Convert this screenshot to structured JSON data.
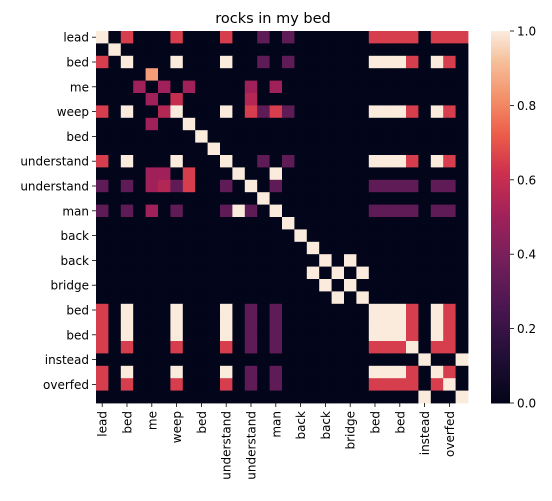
{
  "chart_data": {
    "type": "heatmap",
    "title": "rocks in my bed",
    "xlabel": "",
    "ylabel": "",
    "rows": [
      "lead",
      "",
      "bed",
      "",
      "me",
      "",
      "weep",
      "",
      "bed",
      "",
      "understand",
      "",
      "understand",
      "",
      "man",
      "",
      "back",
      "",
      "back",
      "",
      "bridge",
      "",
      "bed",
      "",
      "bed",
      "",
      "instead",
      "",
      "overfed",
      ""
    ],
    "cols": [
      "lead",
      "",
      "bed",
      "",
      "me",
      "",
      "weep",
      "",
      "bed",
      "",
      "understand",
      "",
      "understand",
      "",
      "man",
      "",
      "back",
      "",
      "back",
      "",
      "bridge",
      "",
      "bed",
      "",
      "bed",
      "",
      "instead",
      "",
      "overfed",
      ""
    ],
    "tick_rows": [
      "lead",
      "bed",
      "me",
      "weep",
      "bed",
      "understand",
      "understand",
      "man",
      "back",
      "back",
      "bridge",
      "bed",
      "bed",
      "instead",
      "overfed"
    ],
    "tick_cols": [
      "lead",
      "bed",
      "me",
      "weep",
      "bed",
      "understand",
      "understand",
      "man",
      "back",
      "back",
      "bridge",
      "bed",
      "bed",
      "instead",
      "overfed"
    ],
    "values": [
      [
        1,
        0,
        0.65,
        0,
        0,
        0,
        0.65,
        0,
        0,
        0,
        0.65,
        0,
        0,
        0.32,
        0,
        0.32,
        0,
        0,
        0,
        0,
        0,
        0,
        0.65,
        0.65,
        0.65,
        0.65,
        0,
        0.65,
        0.65,
        0.65
      ],
      [
        0,
        1,
        0,
        0,
        0,
        0,
        0,
        0,
        0,
        0,
        0,
        0,
        0,
        0,
        0,
        0,
        0,
        0,
        0,
        0,
        0,
        0,
        0,
        0,
        0,
        0,
        0,
        0,
        0,
        0
      ],
      [
        0.65,
        0,
        1,
        0,
        0,
        0,
        1,
        0,
        0,
        0,
        1,
        0,
        0,
        0.32,
        0,
        0.32,
        0,
        0,
        0,
        0,
        0,
        0,
        1,
        1,
        1,
        0.65,
        0,
        1,
        0.65,
        0
      ],
      [
        0,
        0,
        0,
        0,
        0.85,
        0,
        0,
        0,
        0,
        0,
        0,
        0,
        0,
        0,
        0,
        0,
        0,
        0,
        0,
        0,
        0,
        0,
        0,
        0,
        0,
        0,
        0,
        0,
        0,
        0
      ],
      [
        0,
        0,
        0,
        0.5,
        0,
        0.5,
        0,
        0.5,
        0,
        0,
        0,
        0,
        0.5,
        0,
        0.5,
        0,
        0,
        0,
        0,
        0,
        0,
        0,
        0,
        0,
        0,
        0,
        0,
        0,
        0,
        0
      ],
      [
        0,
        0,
        0,
        0,
        0.5,
        0,
        0.6,
        0,
        0,
        0,
        0,
        0,
        0.55,
        0,
        0,
        0,
        0,
        0,
        0,
        0,
        0,
        0,
        0,
        0,
        0,
        0,
        0,
        0,
        0,
        0
      ],
      [
        0.65,
        0,
        1,
        0,
        0,
        0.55,
        1,
        0,
        0,
        0,
        1,
        0,
        0.65,
        0.32,
        0.65,
        0.32,
        0,
        0,
        0,
        0,
        0,
        0,
        1,
        1,
        1,
        0.65,
        0,
        1,
        0.65,
        0
      ],
      [
        0,
        0,
        0,
        0,
        0.5,
        0,
        0,
        1,
        0,
        0,
        0,
        0,
        0,
        0,
        0,
        0,
        0,
        0,
        0,
        0,
        0,
        0,
        0,
        0,
        0,
        0,
        0,
        0,
        0,
        0
      ],
      [
        0,
        0,
        0,
        0,
        0,
        0,
        0,
        0,
        1,
        0,
        0,
        0,
        0,
        0,
        0,
        0,
        0,
        0,
        0,
        0,
        0,
        0,
        0,
        0,
        0,
        0,
        0,
        0,
        0,
        0
      ],
      [
        0,
        0,
        0,
        0,
        0,
        0,
        0,
        0,
        0,
        1,
        0,
        0,
        0,
        0,
        0,
        0,
        0,
        0,
        0,
        0,
        0,
        0,
        0,
        0,
        0,
        0,
        0,
        0,
        0,
        0
      ],
      [
        0.65,
        0,
        1,
        0,
        0,
        0,
        1,
        0,
        0,
        0,
        1,
        0,
        0,
        0.32,
        0,
        0.32,
        0,
        0,
        0,
        0,
        0,
        0,
        1,
        1,
        1,
        0.65,
        0,
        1,
        0.65,
        0
      ],
      [
        0,
        0,
        0,
        0,
        0.5,
        0.5,
        0,
        0.65,
        0,
        0,
        0,
        1,
        0,
        0,
        1,
        0,
        0,
        0,
        0,
        0,
        0,
        0,
        0,
        0,
        0,
        0,
        0,
        0,
        0,
        0
      ],
      [
        0.32,
        0,
        0.32,
        0,
        0.5,
        0.55,
        0.32,
        0.65,
        0,
        0,
        0.32,
        0,
        1,
        0,
        0.32,
        0,
        0,
        0,
        0,
        0,
        0,
        0,
        0.32,
        0.32,
        0.32,
        0.32,
        0,
        0.32,
        0.32,
        0
      ],
      [
        0,
        0,
        0,
        0,
        0,
        0,
        0,
        0,
        0,
        0,
        0,
        0,
        0,
        1,
        0,
        0,
        0,
        0,
        0,
        0,
        0,
        0,
        0,
        0,
        0,
        0,
        0,
        0,
        0,
        0
      ],
      [
        0.32,
        0,
        0.32,
        0,
        0.5,
        0,
        0.32,
        0,
        0,
        0,
        0.32,
        1,
        0.32,
        0,
        1,
        0,
        0,
        0,
        0,
        0,
        0,
        0,
        0.32,
        0.32,
        0.32,
        0.32,
        0,
        0.32,
        0.32,
        0
      ],
      [
        0,
        0,
        0,
        0,
        0,
        0,
        0,
        0,
        0,
        0,
        0,
        0,
        0,
        0,
        0,
        1,
        0,
        0,
        0,
        0,
        0,
        0,
        0,
        0,
        0,
        0,
        0,
        0,
        0,
        0
      ],
      [
        0,
        0,
        0,
        0,
        0,
        0,
        0,
        0,
        0,
        0,
        0,
        0,
        0,
        0,
        0,
        0,
        1,
        0,
        0,
        0,
        0,
        0,
        0,
        0,
        0,
        0,
        0,
        0,
        0,
        0
      ],
      [
        0,
        0,
        0,
        0,
        0,
        0,
        0,
        0,
        0,
        0,
        0,
        0,
        0,
        0,
        0,
        0,
        0,
        1,
        0,
        0,
        0,
        0,
        0,
        0,
        0,
        0,
        0,
        0,
        0,
        0
      ],
      [
        0,
        0,
        0,
        0,
        0,
        0,
        0,
        0,
        0,
        0,
        0,
        0,
        0,
        0,
        0,
        0,
        0,
        0,
        1,
        0,
        1,
        0,
        0,
        0,
        0,
        0,
        0,
        0,
        0,
        0
      ],
      [
        0,
        0,
        0,
        0,
        0,
        0,
        0,
        0,
        0,
        0,
        0,
        0,
        0,
        0,
        0,
        0,
        0,
        1,
        0,
        1,
        0,
        1,
        0,
        0,
        0,
        0,
        0,
        0,
        0,
        0
      ],
      [
        0,
        0,
        0,
        0,
        0,
        0,
        0,
        0,
        0,
        0,
        0,
        0,
        0,
        0,
        0,
        0,
        0,
        0,
        1,
        0,
        1,
        0,
        0,
        0,
        0,
        0,
        0,
        0,
        0,
        0
      ],
      [
        0,
        0,
        0,
        0,
        0,
        0,
        0,
        0,
        0,
        0,
        0,
        0,
        0,
        0,
        0,
        0,
        0,
        0,
        0,
        1,
        0,
        1,
        0,
        0,
        0,
        0,
        0,
        0,
        0,
        0
      ],
      [
        0.65,
        0,
        1,
        0,
        0,
        0,
        1,
        0,
        0,
        0,
        1,
        0,
        0.32,
        0,
        0.32,
        0,
        0,
        0,
        0,
        0,
        0,
        0,
        1,
        1,
        1,
        0.65,
        0,
        1,
        0.65,
        0
      ],
      [
        0.65,
        0,
        1,
        0,
        0,
        0,
        1,
        0,
        0,
        0,
        1,
        0,
        0.32,
        0,
        0.32,
        0,
        0,
        0,
        0,
        0,
        0,
        0,
        1,
        1,
        1,
        0.65,
        0,
        1,
        0.65,
        0
      ],
      [
        0.65,
        0,
        1,
        0,
        0,
        0,
        1,
        0,
        0,
        0,
        1,
        0,
        0.32,
        0,
        0.32,
        0,
        0,
        0,
        0,
        0,
        0,
        0,
        1,
        1,
        1,
        0.65,
        0,
        1,
        0.65,
        0
      ],
      [
        0.65,
        0,
        0.65,
        0,
        0,
        0,
        0.65,
        0,
        0,
        0,
        0.65,
        0,
        0.32,
        0,
        0.32,
        0,
        0,
        0,
        0,
        0,
        0,
        0,
        0.65,
        0.65,
        0.65,
        1,
        0,
        0.65,
        0.65,
        0
      ],
      [
        0,
        0,
        0,
        0,
        0,
        0,
        0,
        0,
        0,
        0,
        0,
        0,
        0,
        0,
        0,
        0,
        0,
        0,
        0,
        0,
        0,
        0,
        0,
        0,
        0,
        0,
        1,
        0,
        0,
        1
      ],
      [
        0.65,
        0,
        1,
        0,
        0,
        0,
        1,
        0,
        0,
        0,
        1,
        0,
        0.32,
        0,
        0.32,
        0,
        0,
        0,
        0,
        0,
        0,
        0,
        1,
        1,
        1,
        0.65,
        0,
        1,
        0.65,
        0
      ],
      [
        0.65,
        0,
        0.65,
        0,
        0,
        0,
        0.65,
        0,
        0,
        0,
        0.65,
        0,
        0.32,
        0,
        0.32,
        0,
        0,
        0,
        0,
        0,
        0,
        0,
        0.65,
        0.65,
        0.65,
        0.65,
        0,
        0.65,
        1,
        0
      ],
      [
        0,
        0,
        0,
        0,
        0,
        0,
        0,
        0,
        0,
        0,
        0,
        0,
        0,
        0,
        0,
        0,
        0,
        0,
        0,
        0,
        0,
        0,
        0,
        0,
        0,
        0,
        1,
        0,
        0,
        1
      ]
    ],
    "colorbar": {
      "min": 0.0,
      "max": 1.0,
      "ticks": [
        "0.0",
        "0.2",
        "0.4",
        "0.6",
        "0.8",
        "1.0"
      ],
      "colormap": "rocket"
    },
    "grid": false,
    "legend": "colorbar-right"
  }
}
